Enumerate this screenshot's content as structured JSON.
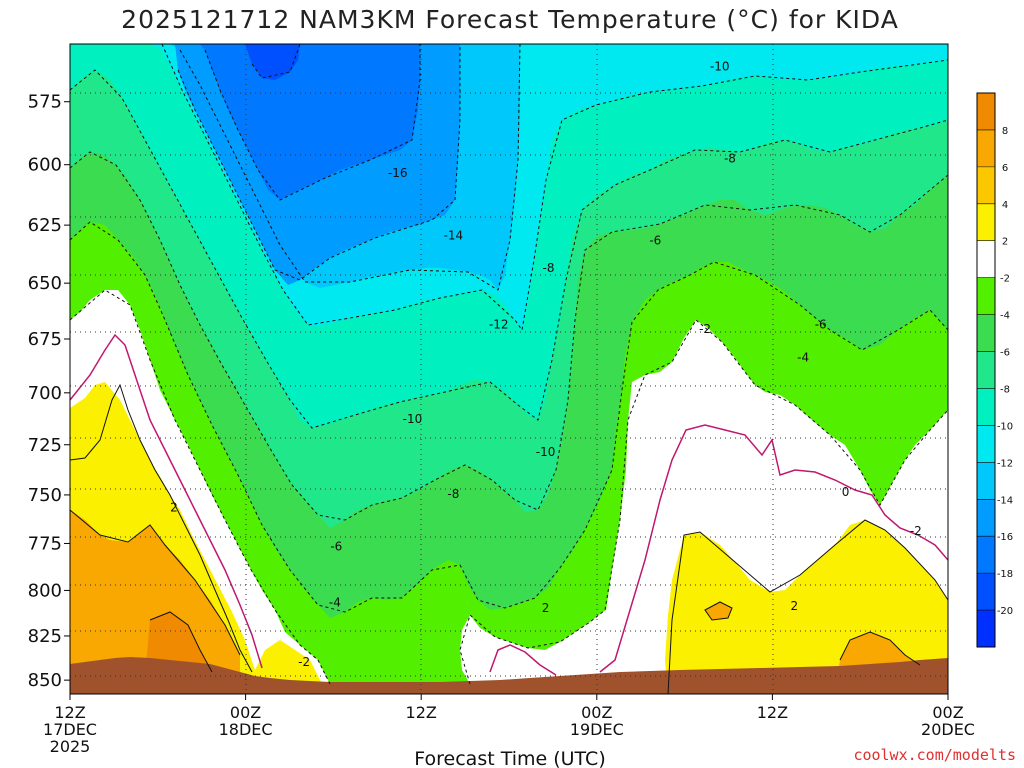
{
  "title": "2025121712 NAM3KM Forecast Temperature (°C) for KIDA",
  "xlabel": "Forecast Time (UTC)",
  "credit": "coolwx.com/modelts",
  "x_ticks": [
    {
      "line1": "12Z",
      "line2": "17DEC",
      "line3": "2025"
    },
    {
      "line1": "00Z",
      "line2": "18DEC",
      "line3": ""
    },
    {
      "line1": "12Z",
      "line2": "",
      "line3": ""
    },
    {
      "line1": "00Z",
      "line2": "19DEC",
      "line3": ""
    },
    {
      "line1": "12Z",
      "line2": "",
      "line3": ""
    },
    {
      "line1": "00Z",
      "line2": "20DEC",
      "line3": ""
    }
  ],
  "colorbar": {
    "labels": [
      "8",
      "6",
      "4",
      "2",
      "-2",
      "-4",
      "-6",
      "-8",
      "-10",
      "-12",
      "-14",
      "-16",
      "-18",
      "-20"
    ],
    "colors": [
      "#f08a00",
      "#f8a800",
      "#fbc800",
      "#fbf000",
      "#ffffff",
      "#52f000",
      "#3cdc50",
      "#20e88a",
      "#00f0c0",
      "#00e8f0",
      "#00c8fa",
      "#009cff",
      "#0078ff",
      "#0050ff",
      "#0030ff"
    ]
  },
  "chart_data": {
    "type": "contour",
    "title": "2025121712 NAM3KM Forecast Temperature (°C) for KIDA",
    "xlabel": "Forecast Time (UTC)",
    "ylabel": "",
    "x_ticks": [
      "12Z 17DEC 2025",
      "00Z 18DEC",
      "12Z",
      "00Z 19DEC",
      "12Z",
      "00Z 20DEC"
    ],
    "x_hours": [
      0,
      12,
      24,
      36,
      48,
      60
    ],
    "xlim_hours": [
      0,
      60
    ],
    "y_ticks": [
      575,
      600,
      625,
      650,
      675,
      700,
      725,
      750,
      775,
      800,
      825,
      850
    ],
    "ylim_hpa": [
      553,
      858
    ],
    "y_scale": "log-pressure (inverted)",
    "grid": true,
    "colorbar_levels_c": [
      8,
      6,
      4,
      2,
      -2,
      -4,
      -6,
      -8,
      -10,
      -12,
      -14,
      -16,
      -18,
      -20
    ],
    "contour_labels": [
      {
        "label": "-10",
        "hour": 44.4,
        "hpa": 561
      },
      {
        "label": "-8",
        "hour": 45.1,
        "hpa": 597
      },
      {
        "label": "-16",
        "hour": 22.4,
        "hpa": 603
      },
      {
        "label": "-14",
        "hour": 26.2,
        "hpa": 629
      },
      {
        "label": "-6",
        "hour": 40.0,
        "hpa": 631
      },
      {
        "label": "-8",
        "hour": 32.7,
        "hpa": 643
      },
      {
        "label": "-12",
        "hour": 29.3,
        "hpa": 668
      },
      {
        "label": "-2",
        "hour": 43.4,
        "hpa": 670
      },
      {
        "label": "-6",
        "hour": 51.3,
        "hpa": 668
      },
      {
        "label": "-4",
        "hour": 50.1,
        "hpa": 683
      },
      {
        "label": "-10",
        "hour": 23.4,
        "hpa": 712
      },
      {
        "label": "-10",
        "hour": 32.5,
        "hpa": 728
      },
      {
        "label": "-8",
        "hour": 26.2,
        "hpa": 749
      },
      {
        "label": "0",
        "hour": 53.0,
        "hpa": 748
      },
      {
        "label": "2",
        "hour": 7.1,
        "hpa": 756
      },
      {
        "label": "-2",
        "hour": 57.8,
        "hpa": 768
      },
      {
        "label": "-6",
        "hour": 18.2,
        "hpa": 776
      },
      {
        "label": "-4",
        "hour": 18.1,
        "hpa": 806
      },
      {
        "label": "2",
        "hour": 32.5,
        "hpa": 809
      },
      {
        "label": "2",
        "hour": 49.5,
        "hpa": 808
      },
      {
        "label": "-2",
        "hour": 16.0,
        "hpa": 839
      }
    ]
  }
}
